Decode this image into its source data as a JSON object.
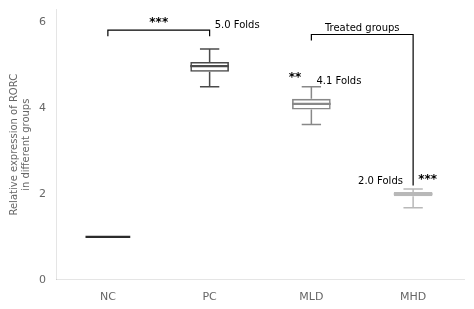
{
  "chart_data": {
    "type": "box",
    "categories": [
      "NC",
      "PC",
      "MLD",
      "MHD"
    ],
    "boxes": [
      {
        "median": 1.0,
        "color": "#2b2b2b"
      },
      {
        "median": 4.98,
        "q1": 4.85,
        "q3": 5.08,
        "whisker_low": 4.5,
        "whisker_high": 5.38,
        "color": "#4a4a4a"
      },
      {
        "median": 4.1,
        "q1": 3.97,
        "q3": 4.22,
        "whisker_low": 3.62,
        "whisker_high": 4.5,
        "color": "#888888"
      },
      {
        "median": 2.0,
        "q1": 1.95,
        "q3": 2.05,
        "whisker_low": 1.68,
        "whisker_high": 2.12,
        "color": "#b8b8b8"
      }
    ],
    "ylabel": "Relative expression of RORC\nin different groups",
    "ylim": [
      0,
      6.3
    ],
    "yticks": [
      0,
      2,
      4,
      6
    ],
    "grid": false,
    "annotations": [
      {
        "text": "***",
        "from": "NC",
        "to": "PC",
        "y": 5.82,
        "side": "center"
      },
      {
        "text": "5.0 Folds",
        "at": "PC",
        "y": 5.82,
        "side": "right"
      },
      {
        "text": "Treated groups",
        "from": "MLD",
        "to": "MHD",
        "y": 5.72,
        "leg_to": 2.2,
        "side": "center"
      },
      {
        "text": "**",
        "at": "MLD",
        "y": 4.56,
        "side": "left"
      },
      {
        "text": "4.1 Folds",
        "at": "MLD",
        "y": 4.52,
        "side": "right"
      },
      {
        "text": "2.0 Folds",
        "at": "MHD",
        "y": 2.18,
        "side": "left"
      },
      {
        "text": "***",
        "at": "MHD",
        "y": 2.2,
        "side": "right"
      }
    ]
  }
}
